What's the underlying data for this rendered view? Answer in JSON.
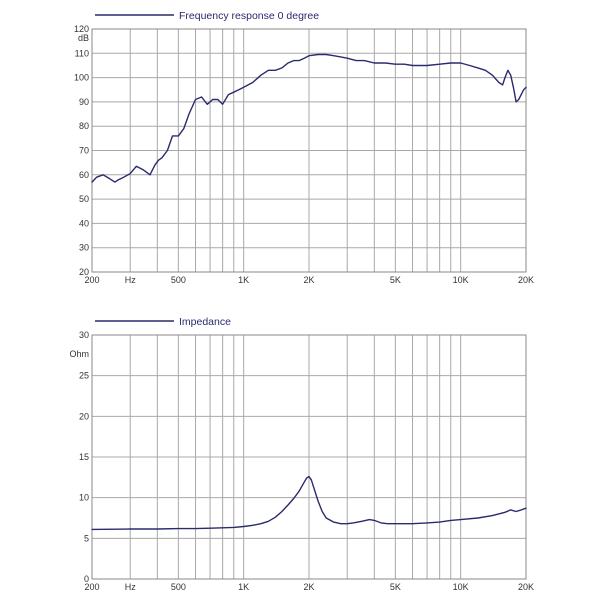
{
  "line_color": "#2a2a6e",
  "chart_data": [
    {
      "type": "line",
      "legend": "Frequency response 0 degree",
      "ylabel": "dB",
      "xscale": "log",
      "xlim": [
        200,
        20000
      ],
      "ylim": [
        20,
        120
      ],
      "x_ticks": [
        200,
        300,
        500,
        1000,
        2000,
        5000,
        10000,
        20000
      ],
      "x_tick_labels": [
        "200",
        "Hz",
        "500",
        "1K",
        "2K",
        "5K",
        "10K",
        "20K"
      ],
      "y_ticks": [
        20,
        30,
        40,
        50,
        60,
        70,
        80,
        90,
        100,
        110,
        120
      ],
      "y_tick_labels": [
        "20",
        "30",
        "40",
        "50",
        "60",
        "70",
        "80",
        "90",
        "100",
        "110",
        "120"
      ],
      "x_gridlines": [
        200,
        300,
        400,
        500,
        600,
        700,
        800,
        900,
        1000,
        2000,
        3000,
        4000,
        5000,
        6000,
        7000,
        8000,
        9000,
        10000,
        20000
      ],
      "series": [
        {
          "name": "Frequency response 0 degree",
          "x": [
            200,
            210,
            225,
            240,
            255,
            265,
            280,
            300,
            320,
            345,
            370,
            390,
            405,
            420,
            445,
            470,
            500,
            530,
            560,
            600,
            640,
            680,
            720,
            760,
            800,
            850,
            900,
            950,
            1000,
            1100,
            1200,
            1300,
            1400,
            1500,
            1600,
            1700,
            1800,
            1900,
            2000,
            2200,
            2400,
            2600,
            2800,
            3000,
            3300,
            3600,
            4000,
            4500,
            5000,
            5500,
            6000,
            7000,
            8000,
            9000,
            10000,
            11000,
            12000,
            13000,
            14000,
            15000,
            15600,
            16000,
            16500,
            17000,
            17500,
            18000,
            18500,
            19000,
            19500,
            20000
          ],
          "y": [
            57,
            59,
            60,
            58.5,
            57,
            58,
            59,
            60.5,
            63.5,
            62,
            60,
            64,
            66,
            67,
            70,
            76,
            76,
            79,
            85,
            91,
            92,
            89,
            91,
            91,
            89,
            93,
            94,
            95,
            96,
            98,
            101,
            103,
            103,
            104,
            106,
            107,
            107,
            108,
            109,
            109.5,
            109.5,
            109,
            108.5,
            108,
            107,
            107,
            106,
            106,
            105.5,
            105.5,
            105,
            105,
            105.5,
            106,
            106,
            105,
            104,
            103,
            101,
            98,
            97,
            100,
            103,
            101,
            96,
            90,
            91,
            93,
            95,
            96
          ]
        }
      ]
    },
    {
      "type": "line",
      "legend": "Impedance",
      "ylabel": "Ohm",
      "xscale": "log",
      "xlim": [
        200,
        20000
      ],
      "ylim": [
        0,
        30
      ],
      "x_ticks": [
        200,
        300,
        500,
        1000,
        2000,
        5000,
        10000,
        20000
      ],
      "x_tick_labels": [
        "200",
        "Hz",
        "500",
        "1K",
        "2K",
        "5K",
        "10K",
        "20K"
      ],
      "y_ticks": [
        0,
        5,
        10,
        15,
        20,
        25,
        30
      ],
      "y_tick_labels": [
        "0",
        "5",
        "10",
        "15",
        "20",
        "25",
        "30"
      ],
      "x_gridlines": [
        200,
        300,
        400,
        500,
        600,
        700,
        800,
        900,
        1000,
        2000,
        3000,
        4000,
        5000,
        6000,
        7000,
        8000,
        9000,
        10000,
        20000
      ],
      "series": [
        {
          "name": "Impedance",
          "x": [
            200,
            300,
            400,
            500,
            600,
            700,
            800,
            900,
            1000,
            1100,
            1200,
            1300,
            1400,
            1500,
            1600,
            1700,
            1800,
            1900,
            1950,
            2000,
            2050,
            2100,
            2200,
            2300,
            2400,
            2600,
            2800,
            3000,
            3200,
            3500,
            3800,
            4000,
            4300,
            4600,
            5000,
            6000,
            7000,
            8000,
            9000,
            10000,
            12000,
            14000,
            16000,
            17000,
            18000,
            19000,
            20000
          ],
          "y": [
            6.1,
            6.15,
            6.15,
            6.2,
            6.2,
            6.25,
            6.3,
            6.35,
            6.45,
            6.6,
            6.8,
            7.1,
            7.6,
            8.3,
            9.1,
            9.9,
            10.8,
            11.9,
            12.4,
            12.6,
            12.2,
            11.3,
            9.6,
            8.3,
            7.5,
            7.0,
            6.8,
            6.8,
            6.9,
            7.1,
            7.3,
            7.2,
            6.9,
            6.8,
            6.8,
            6.8,
            6.9,
            7.0,
            7.2,
            7.3,
            7.5,
            7.8,
            8.2,
            8.5,
            8.3,
            8.5,
            8.7
          ]
        }
      ]
    }
  ]
}
